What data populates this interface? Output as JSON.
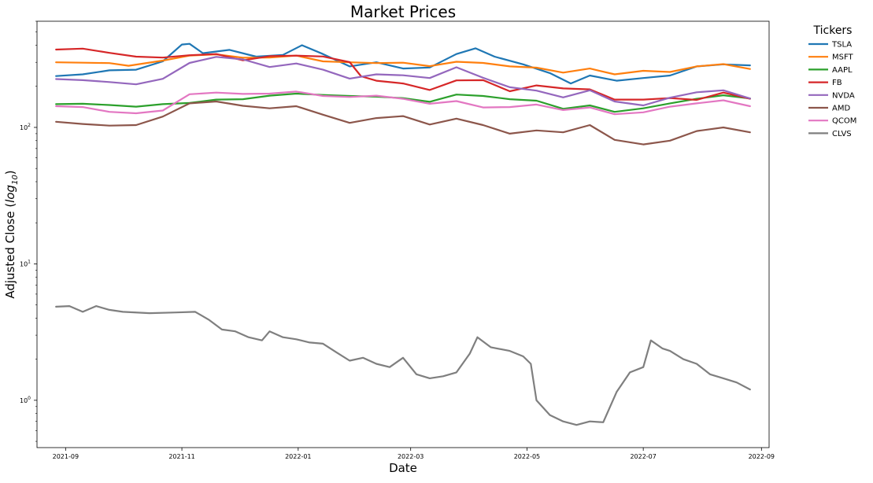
{
  "chart_data": {
    "type": "line",
    "title": "Market Prices",
    "xlabel": "Date",
    "ylabel": "Adjusted Close (log10)",
    "yscale": "log",
    "ylim": [
      0.45,
      600
    ],
    "xlim": [
      "2021-08-17",
      "2022-09-05"
    ],
    "grid": false,
    "legend": {
      "title": "Tickers",
      "placement": "outside-top-right"
    },
    "x_ticks": [
      {
        "date": "2021-09-01",
        "label": "2021-09"
      },
      {
        "date": "2021-11-01",
        "label": "2021-11"
      },
      {
        "date": "2022-01-01",
        "label": "2022-01"
      },
      {
        "date": "2022-03-01",
        "label": "2022-03"
      },
      {
        "date": "2022-05-01",
        "label": "2022-05"
      },
      {
        "date": "2022-07-01",
        "label": "2022-07"
      },
      {
        "date": "2022-09-01",
        "label": "2022-09"
      }
    ],
    "y_ticks": [
      {
        "value": 1,
        "base": "10",
        "exp": "0"
      },
      {
        "value": 10,
        "base": "10",
        "exp": "1"
      },
      {
        "value": 100,
        "base": "10",
        "exp": "2"
      }
    ],
    "series": [
      {
        "name": "TSLA",
        "color": "#1f77b4",
        "points": [
          [
            "2021-08-27",
            238
          ],
          [
            "2021-09-10",
            245
          ],
          [
            "2021-09-24",
            262
          ],
          [
            "2021-10-08",
            265
          ],
          [
            "2021-10-22",
            305
          ],
          [
            "2021-11-01",
            405
          ],
          [
            "2021-11-05",
            410
          ],
          [
            "2021-11-12",
            350
          ],
          [
            "2021-11-26",
            370
          ],
          [
            "2021-12-10",
            330
          ],
          [
            "2021-12-24",
            340
          ],
          [
            "2022-01-03",
            400
          ],
          [
            "2022-01-14",
            345
          ],
          [
            "2022-01-28",
            280
          ],
          [
            "2022-02-11",
            300
          ],
          [
            "2022-02-25",
            270
          ],
          [
            "2022-03-11",
            275
          ],
          [
            "2022-03-25",
            345
          ],
          [
            "2022-04-04",
            380
          ],
          [
            "2022-04-14",
            330
          ],
          [
            "2022-04-29",
            290
          ],
          [
            "2022-05-13",
            250
          ],
          [
            "2022-05-24",
            210
          ],
          [
            "2022-06-03",
            240
          ],
          [
            "2022-06-17",
            220
          ],
          [
            "2022-07-01",
            230
          ],
          [
            "2022-07-15",
            240
          ],
          [
            "2022-07-29",
            280
          ],
          [
            "2022-08-12",
            290
          ],
          [
            "2022-08-26",
            285
          ]
        ]
      },
      {
        "name": "MSFT",
        "color": "#ff7f0e",
        "points": [
          [
            "2021-08-27",
            300
          ],
          [
            "2021-09-10",
            298
          ],
          [
            "2021-09-24",
            296
          ],
          [
            "2021-10-04",
            283
          ],
          [
            "2021-10-22",
            309
          ],
          [
            "2021-11-05",
            336
          ],
          [
            "2021-11-19",
            343
          ],
          [
            "2021-12-03",
            324
          ],
          [
            "2021-12-17",
            325
          ],
          [
            "2021-12-31",
            336
          ],
          [
            "2022-01-14",
            305
          ],
          [
            "2022-01-28",
            300
          ],
          [
            "2022-02-11",
            296
          ],
          [
            "2022-02-25",
            298
          ],
          [
            "2022-03-11",
            281
          ],
          [
            "2022-03-25",
            303
          ],
          [
            "2022-04-08",
            297
          ],
          [
            "2022-04-22",
            280
          ],
          [
            "2022-05-06",
            274
          ],
          [
            "2022-05-20",
            252
          ],
          [
            "2022-06-03",
            270
          ],
          [
            "2022-06-16",
            245
          ],
          [
            "2022-07-01",
            260
          ],
          [
            "2022-07-15",
            255
          ],
          [
            "2022-07-29",
            280
          ],
          [
            "2022-08-12",
            291
          ],
          [
            "2022-08-26",
            268
          ]
        ]
      },
      {
        "name": "AAPL",
        "color": "#2ca02c",
        "points": [
          [
            "2021-08-27",
            148
          ],
          [
            "2021-09-10",
            149
          ],
          [
            "2021-09-24",
            146
          ],
          [
            "2021-10-08",
            142
          ],
          [
            "2021-10-22",
            148
          ],
          [
            "2021-11-05",
            151
          ],
          [
            "2021-11-19",
            160
          ],
          [
            "2021-12-03",
            161
          ],
          [
            "2021-12-17",
            171
          ],
          [
            "2021-12-31",
            177
          ],
          [
            "2022-01-14",
            173
          ],
          [
            "2022-01-28",
            170
          ],
          [
            "2022-02-11",
            168
          ],
          [
            "2022-02-25",
            164
          ],
          [
            "2022-03-11",
            154
          ],
          [
            "2022-03-25",
            174
          ],
          [
            "2022-04-08",
            170
          ],
          [
            "2022-04-22",
            161
          ],
          [
            "2022-05-06",
            157
          ],
          [
            "2022-05-20",
            137
          ],
          [
            "2022-06-03",
            145
          ],
          [
            "2022-06-16",
            130
          ],
          [
            "2022-07-01",
            138
          ],
          [
            "2022-07-15",
            150
          ],
          [
            "2022-07-29",
            162
          ],
          [
            "2022-08-12",
            172
          ],
          [
            "2022-08-26",
            163
          ]
        ]
      },
      {
        "name": "FB",
        "color": "#d62728",
        "points": [
          [
            "2021-08-27",
            372
          ],
          [
            "2021-09-10",
            378
          ],
          [
            "2021-09-24",
            352
          ],
          [
            "2021-10-08",
            330
          ],
          [
            "2021-10-22",
            325
          ],
          [
            "2021-11-05",
            338
          ],
          [
            "2021-11-19",
            345
          ],
          [
            "2021-12-03",
            310
          ],
          [
            "2021-12-17",
            333
          ],
          [
            "2021-12-31",
            336
          ],
          [
            "2022-01-14",
            331
          ],
          [
            "2022-01-28",
            301
          ],
          [
            "2022-02-03",
            237
          ],
          [
            "2022-02-11",
            220
          ],
          [
            "2022-02-25",
            210
          ],
          [
            "2022-03-11",
            188
          ],
          [
            "2022-03-25",
            221
          ],
          [
            "2022-04-08",
            222
          ],
          [
            "2022-04-22",
            184
          ],
          [
            "2022-05-06",
            203
          ],
          [
            "2022-05-20",
            193
          ],
          [
            "2022-06-03",
            190
          ],
          [
            "2022-06-16",
            160
          ],
          [
            "2022-07-01",
            160
          ],
          [
            "2022-07-15",
            164
          ],
          [
            "2022-07-29",
            159
          ],
          [
            "2022-08-12",
            180
          ],
          [
            "2022-08-26",
            162
          ]
        ]
      },
      {
        "name": "NVDA",
        "color": "#9467bd",
        "points": [
          [
            "2021-08-27",
            226
          ],
          [
            "2021-09-10",
            222
          ],
          [
            "2021-09-24",
            215
          ],
          [
            "2021-10-08",
            207
          ],
          [
            "2021-10-22",
            227
          ],
          [
            "2021-11-05",
            297
          ],
          [
            "2021-11-19",
            329
          ],
          [
            "2021-12-03",
            315
          ],
          [
            "2021-12-17",
            277
          ],
          [
            "2021-12-31",
            294
          ],
          [
            "2022-01-14",
            265
          ],
          [
            "2022-01-28",
            228
          ],
          [
            "2022-02-11",
            245
          ],
          [
            "2022-02-25",
            241
          ],
          [
            "2022-03-11",
            230
          ],
          [
            "2022-03-25",
            276
          ],
          [
            "2022-04-08",
            231
          ],
          [
            "2022-04-22",
            197
          ],
          [
            "2022-05-06",
            186
          ],
          [
            "2022-05-20",
            166
          ],
          [
            "2022-06-03",
            187
          ],
          [
            "2022-06-16",
            155
          ],
          [
            "2022-07-01",
            145
          ],
          [
            "2022-07-15",
            165
          ],
          [
            "2022-07-29",
            181
          ],
          [
            "2022-08-12",
            187
          ],
          [
            "2022-08-26",
            163
          ]
        ]
      },
      {
        "name": "AMD",
        "color": "#8c564b",
        "points": [
          [
            "2021-08-27",
            110
          ],
          [
            "2021-09-10",
            106
          ],
          [
            "2021-09-24",
            103
          ],
          [
            "2021-10-08",
            104
          ],
          [
            "2021-10-22",
            120
          ],
          [
            "2021-11-05",
            150
          ],
          [
            "2021-11-19",
            155
          ],
          [
            "2021-12-03",
            144
          ],
          [
            "2021-12-17",
            138
          ],
          [
            "2021-12-31",
            143
          ],
          [
            "2022-01-14",
            124
          ],
          [
            "2022-01-28",
            108
          ],
          [
            "2022-02-11",
            117
          ],
          [
            "2022-02-25",
            121
          ],
          [
            "2022-03-11",
            105
          ],
          [
            "2022-03-25",
            116
          ],
          [
            "2022-04-08",
            104
          ],
          [
            "2022-04-22",
            90
          ],
          [
            "2022-05-06",
            95
          ],
          [
            "2022-05-20",
            92
          ],
          [
            "2022-06-03",
            104
          ],
          [
            "2022-06-16",
            81
          ],
          [
            "2022-07-01",
            75
          ],
          [
            "2022-07-15",
            80
          ],
          [
            "2022-07-29",
            94
          ],
          [
            "2022-08-12",
            100
          ],
          [
            "2022-08-26",
            92
          ]
        ]
      },
      {
        "name": "QCOM",
        "color": "#e377c2",
        "points": [
          [
            "2021-08-27",
            143
          ],
          [
            "2021-09-10",
            141
          ],
          [
            "2021-09-24",
            130
          ],
          [
            "2021-10-08",
            127
          ],
          [
            "2021-10-22",
            133
          ],
          [
            "2021-11-05",
            175
          ],
          [
            "2021-11-19",
            180
          ],
          [
            "2021-12-03",
            176
          ],
          [
            "2021-12-17",
            177
          ],
          [
            "2021-12-31",
            183
          ],
          [
            "2022-01-14",
            170
          ],
          [
            "2022-01-28",
            167
          ],
          [
            "2022-02-11",
            171
          ],
          [
            "2022-02-25",
            162
          ],
          [
            "2022-03-11",
            149
          ],
          [
            "2022-03-25",
            156
          ],
          [
            "2022-04-08",
            140
          ],
          [
            "2022-04-22",
            141
          ],
          [
            "2022-05-06",
            147
          ],
          [
            "2022-05-20",
            134
          ],
          [
            "2022-06-03",
            140
          ],
          [
            "2022-06-16",
            125
          ],
          [
            "2022-07-01",
            129
          ],
          [
            "2022-07-15",
            142
          ],
          [
            "2022-07-29",
            150
          ],
          [
            "2022-08-12",
            158
          ],
          [
            "2022-08-26",
            143
          ]
        ]
      },
      {
        "name": "CLVS",
        "color": "#7f7f7f",
        "points": [
          [
            "2021-08-27",
            4.85
          ],
          [
            "2021-09-03",
            4.9
          ],
          [
            "2021-09-10",
            4.45
          ],
          [
            "2021-09-17",
            4.9
          ],
          [
            "2021-09-24",
            4.6
          ],
          [
            "2021-10-01",
            4.45
          ],
          [
            "2021-10-15",
            4.35
          ],
          [
            "2021-10-29",
            4.4
          ],
          [
            "2021-11-08",
            4.45
          ],
          [
            "2021-11-15",
            3.9
          ],
          [
            "2021-11-22",
            3.3
          ],
          [
            "2021-11-29",
            3.2
          ],
          [
            "2021-12-06",
            2.9
          ],
          [
            "2021-12-13",
            2.75
          ],
          [
            "2021-12-17",
            3.2
          ],
          [
            "2021-12-24",
            2.9
          ],
          [
            "2021-12-31",
            2.8
          ],
          [
            "2022-01-07",
            2.65
          ],
          [
            "2022-01-14",
            2.6
          ],
          [
            "2022-01-21",
            2.25
          ],
          [
            "2022-01-28",
            1.95
          ],
          [
            "2022-02-04",
            2.05
          ],
          [
            "2022-02-11",
            1.85
          ],
          [
            "2022-02-18",
            1.75
          ],
          [
            "2022-02-25",
            2.05
          ],
          [
            "2022-03-04",
            1.55
          ],
          [
            "2022-03-11",
            1.45
          ],
          [
            "2022-03-18",
            1.5
          ],
          [
            "2022-03-25",
            1.6
          ],
          [
            "2022-04-01",
            2.2
          ],
          [
            "2022-04-05",
            2.9
          ],
          [
            "2022-04-12",
            2.45
          ],
          [
            "2022-04-22",
            2.3
          ],
          [
            "2022-04-29",
            2.1
          ],
          [
            "2022-05-03",
            1.85
          ],
          [
            "2022-05-06",
            1.0
          ],
          [
            "2022-05-13",
            0.78
          ],
          [
            "2022-05-20",
            0.7
          ],
          [
            "2022-05-27",
            0.66
          ],
          [
            "2022-06-03",
            0.7
          ],
          [
            "2022-06-10",
            0.69
          ],
          [
            "2022-06-17",
            1.15
          ],
          [
            "2022-06-24",
            1.6
          ],
          [
            "2022-07-01",
            1.75
          ],
          [
            "2022-07-05",
            2.75
          ],
          [
            "2022-07-11",
            2.4
          ],
          [
            "2022-07-15",
            2.3
          ],
          [
            "2022-07-22",
            2.0
          ],
          [
            "2022-07-29",
            1.85
          ],
          [
            "2022-08-05",
            1.55
          ],
          [
            "2022-08-12",
            1.45
          ],
          [
            "2022-08-19",
            1.35
          ],
          [
            "2022-08-26",
            1.2
          ]
        ]
      }
    ]
  }
}
